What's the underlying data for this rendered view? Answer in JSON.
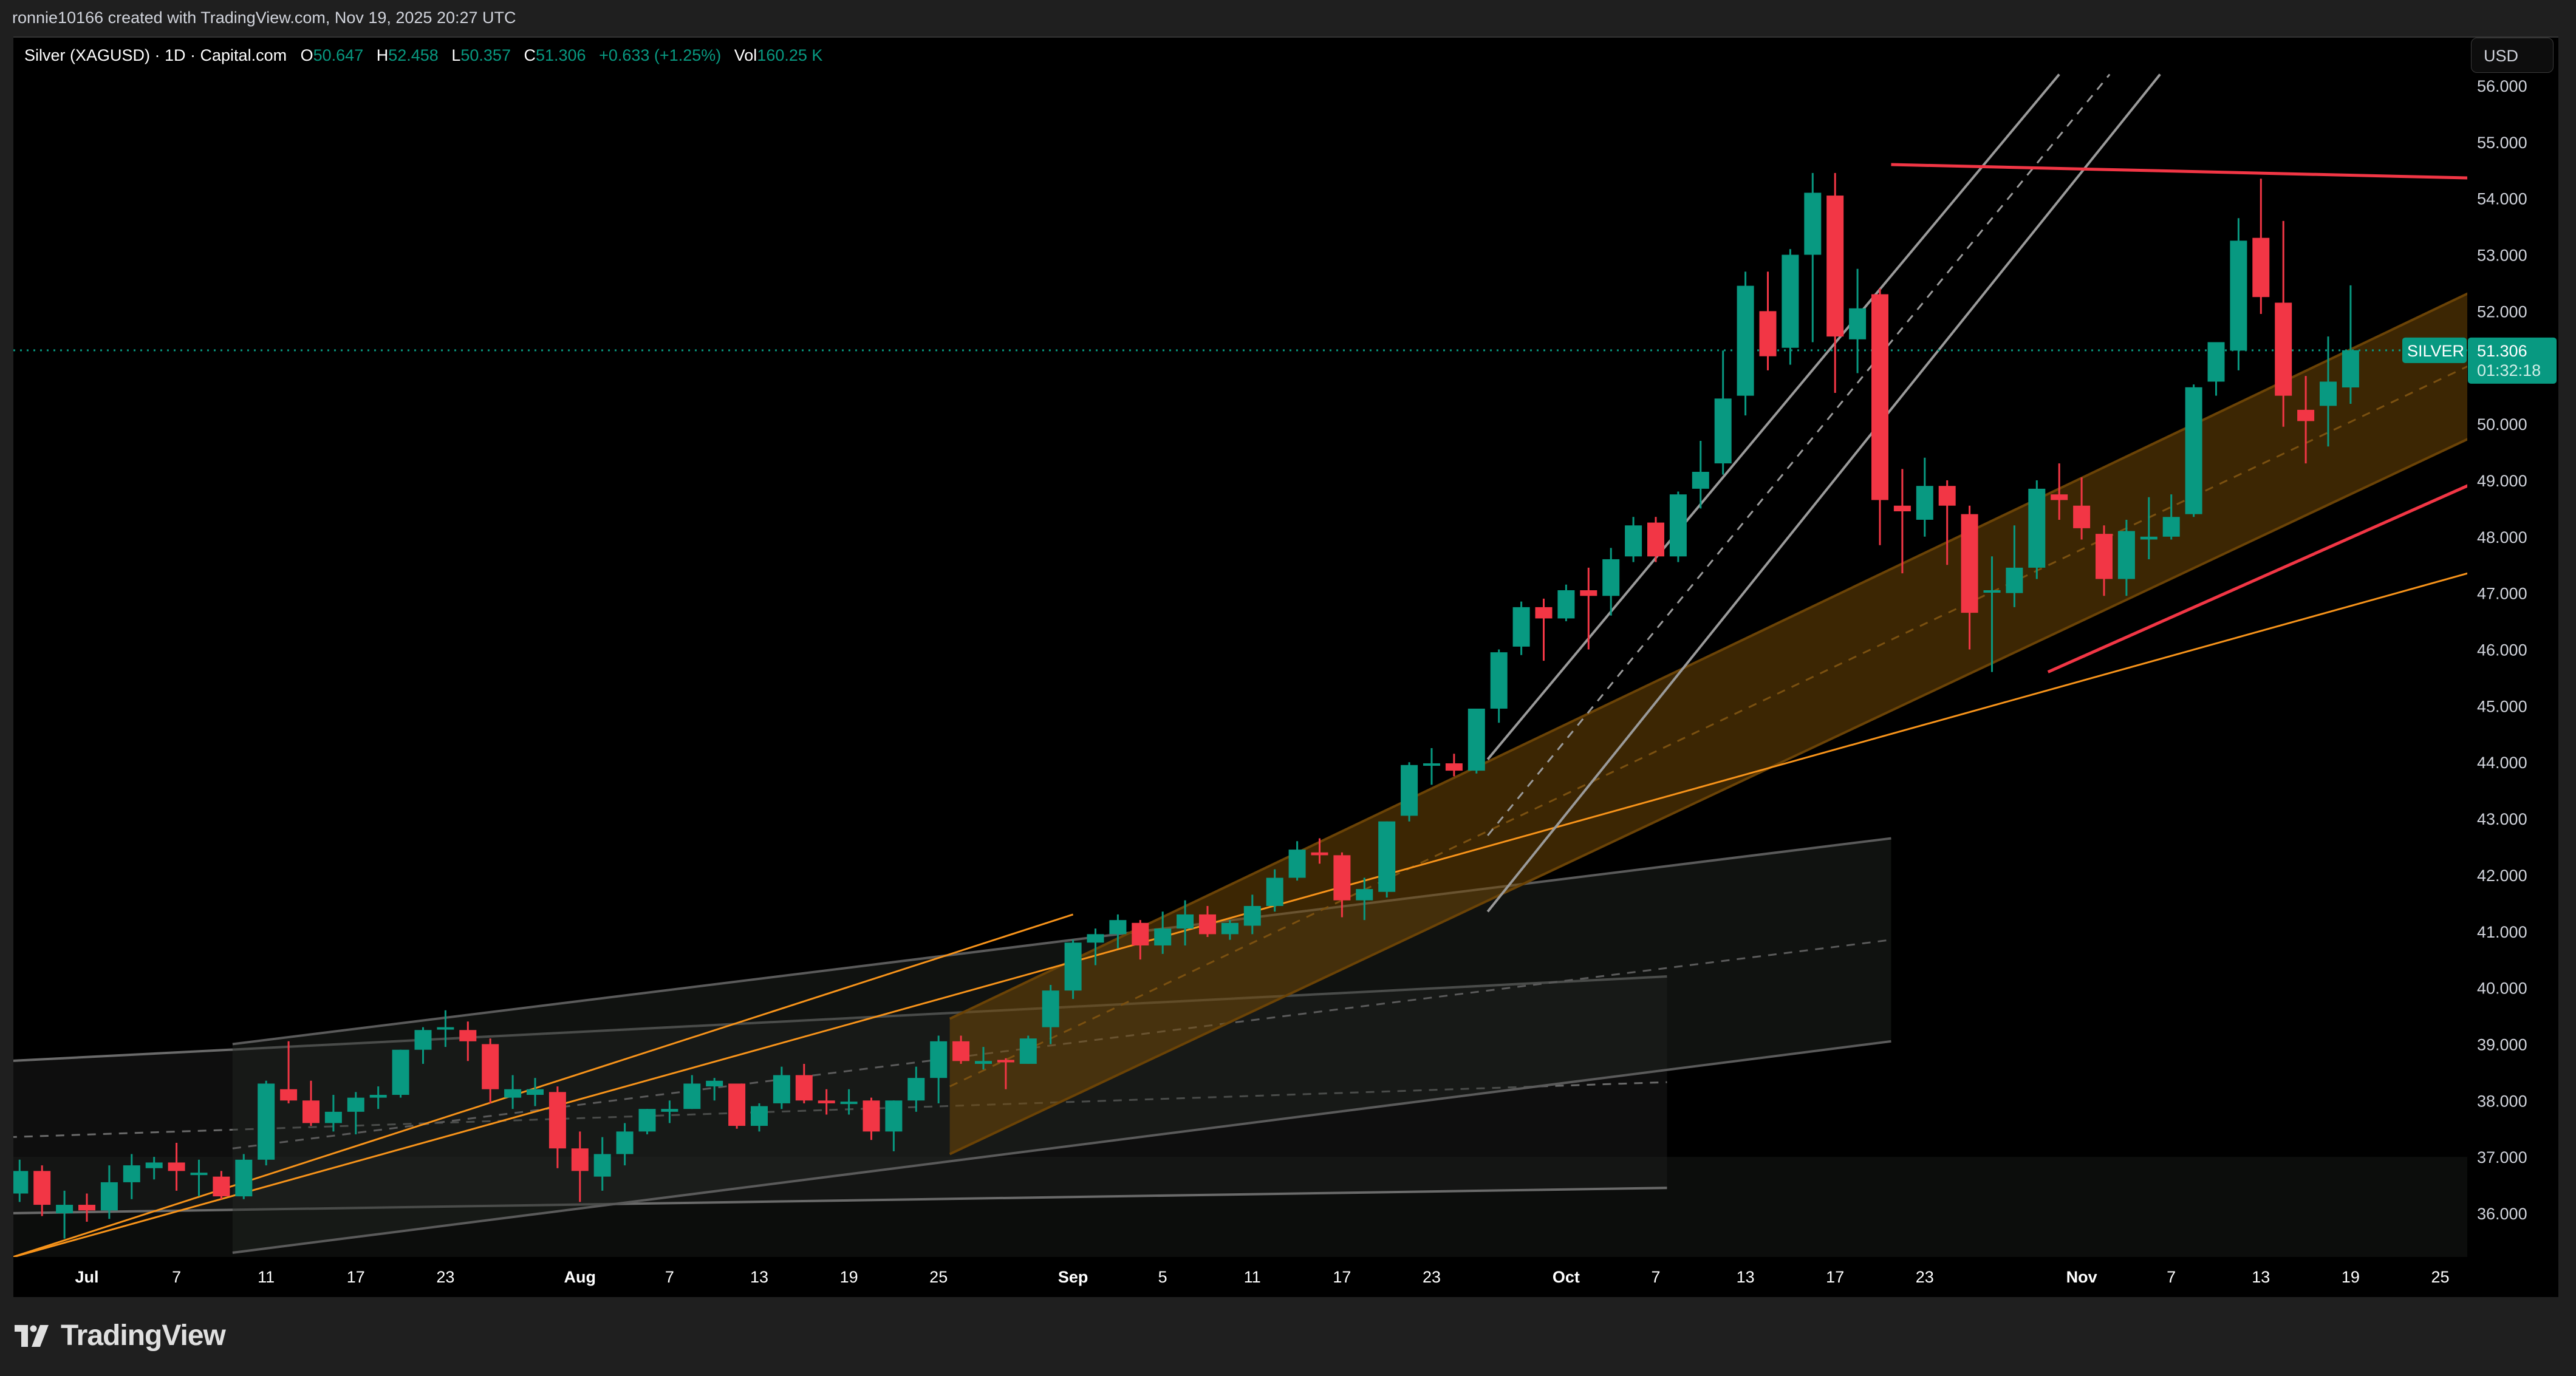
{
  "caption": "ronnie10166 created with TradingView.com, Nov 19, 2025 20:27 UTC",
  "legend": {
    "symbol": "Silver (XAGUSD) · 1D · Capital.com",
    "open_label": "O",
    "open": "50.647",
    "high_label": "H",
    "high": "52.458",
    "low_label": "L",
    "low": "50.357",
    "close_label": "C",
    "close": "51.306",
    "change": "+0.633 (+1.25%)",
    "vol_label": "Vol",
    "vol": "160.25 K"
  },
  "currency_button": "USD",
  "price_tag": {
    "symbol_label": "SILVER",
    "price": "51.306",
    "countdown": "01:32:18"
  },
  "footer": {
    "brand": "TradingView"
  },
  "colors": {
    "up": "#089981",
    "down": "#F23645",
    "channel_fill": "#3d2600",
    "channel_line": "#6b4306",
    "trend_orange": "#f7931a",
    "trend_red": "#F23645",
    "gray_line": "#8a8a8a",
    "axis_text": "#d1d4dc"
  },
  "chart_data": {
    "type": "candlestick",
    "title": "Silver (XAGUSD) · 1D · Capital.com",
    "xlabel": "",
    "ylabel": "USD",
    "ylim": [
      35.2,
      56.2
    ],
    "y_ticks": [
      "56.000",
      "55.000",
      "54.000",
      "53.000",
      "52.000",
      "51.000",
      "50.000",
      "49.000",
      "48.000",
      "47.000",
      "46.000",
      "45.000",
      "44.000",
      "43.000",
      "42.000",
      "41.000",
      "40.000",
      "39.000",
      "38.000",
      "37.000",
      "36.000"
    ],
    "y_tick_values": [
      56,
      55,
      54,
      53,
      52,
      51,
      50,
      49,
      48,
      47,
      46,
      45,
      44,
      43,
      42,
      41,
      40,
      39,
      38,
      37,
      36
    ],
    "x_ticks": [
      {
        "label": "Jul",
        "bar": 0,
        "bold": true
      },
      {
        "label": "7",
        "bar": 4
      },
      {
        "label": "11",
        "bar": 8
      },
      {
        "label": "17",
        "bar": 12
      },
      {
        "label": "23",
        "bar": 16
      },
      {
        "label": "Aug",
        "bar": 22,
        "bold": true
      },
      {
        "label": "7",
        "bar": 26
      },
      {
        "label": "13",
        "bar": 30
      },
      {
        "label": "19",
        "bar": 34
      },
      {
        "label": "25",
        "bar": 38
      },
      {
        "label": "Sep",
        "bar": 44,
        "bold": true
      },
      {
        "label": "5",
        "bar": 48
      },
      {
        "label": "11",
        "bar": 52
      },
      {
        "label": "17",
        "bar": 56
      },
      {
        "label": "23",
        "bar": 60
      },
      {
        "label": "Oct",
        "bar": 66,
        "bold": true
      },
      {
        "label": "7",
        "bar": 70
      },
      {
        "label": "13",
        "bar": 74
      },
      {
        "label": "17",
        "bar": 78
      },
      {
        "label": "23",
        "bar": 82
      },
      {
        "label": "Nov",
        "bar": 89,
        "bold": true
      },
      {
        "label": "7",
        "bar": 93
      },
      {
        "label": "13",
        "bar": 97
      },
      {
        "label": "19",
        "bar": 101
      },
      {
        "label": "25",
        "bar": 105
      }
    ],
    "last_price": 51.306,
    "candles": [
      {
        "d": "Jun 26",
        "o": 36.35,
        "h": 36.95,
        "l": 36.2,
        "c": 36.75
      },
      {
        "d": "Jun 27",
        "o": 36.75,
        "h": 36.85,
        "l": 35.95,
        "c": 36.15
      },
      {
        "d": "Jun 30",
        "o": 36.0,
        "h": 36.4,
        "l": 35.55,
        "c": 36.15
      },
      {
        "d": "Jul 1",
        "o": 36.15,
        "h": 36.35,
        "l": 35.85,
        "c": 36.05
      },
      {
        "d": "Jul 2",
        "o": 36.05,
        "h": 36.85,
        "l": 35.9,
        "c": 36.55
      },
      {
        "d": "Jul 3",
        "o": 36.55,
        "h": 37.05,
        "l": 36.25,
        "c": 36.85
      },
      {
        "d": "Jul 4",
        "o": 36.8,
        "h": 37.0,
        "l": 36.6,
        "c": 36.9
      },
      {
        "d": "Jul 7",
        "o": 36.9,
        "h": 37.25,
        "l": 36.4,
        "c": 36.75
      },
      {
        "d": "Jul 8",
        "o": 36.7,
        "h": 36.95,
        "l": 36.3,
        "c": 36.72
      },
      {
        "d": "Jul 9",
        "o": 36.65,
        "h": 36.75,
        "l": 36.25,
        "c": 36.3
      },
      {
        "d": "Jul 10",
        "o": 36.3,
        "h": 37.05,
        "l": 36.25,
        "c": 36.95
      },
      {
        "d": "Jul 11",
        "o": 36.95,
        "h": 38.35,
        "l": 36.85,
        "c": 38.3
      },
      {
        "d": "Jul 14",
        "o": 38.2,
        "h": 39.05,
        "l": 37.95,
        "c": 38.0
      },
      {
        "d": "Jul 15",
        "o": 38.0,
        "h": 38.35,
        "l": 37.55,
        "c": 37.6
      },
      {
        "d": "Jul 16",
        "o": 37.6,
        "h": 38.1,
        "l": 37.45,
        "c": 37.8
      },
      {
        "d": "Jul 17",
        "o": 37.8,
        "h": 38.15,
        "l": 37.4,
        "c": 38.05
      },
      {
        "d": "Jul 18",
        "o": 38.05,
        "h": 38.25,
        "l": 37.85,
        "c": 38.1
      },
      {
        "d": "Jul 21",
        "o": 38.1,
        "h": 38.9,
        "l": 38.05,
        "c": 38.9
      },
      {
        "d": "Jul 22",
        "o": 38.9,
        "h": 39.3,
        "l": 38.65,
        "c": 39.25
      },
      {
        "d": "Jul 23",
        "o": 39.3,
        "h": 39.6,
        "l": 38.95,
        "c": 39.3
      },
      {
        "d": "Jul 24",
        "o": 39.25,
        "h": 39.4,
        "l": 38.7,
        "c": 39.05
      },
      {
        "d": "Jul 25",
        "o": 39.0,
        "h": 39.1,
        "l": 37.95,
        "c": 38.2
      },
      {
        "d": "Jul 28",
        "o": 38.05,
        "h": 38.45,
        "l": 37.85,
        "c": 38.2
      },
      {
        "d": "Jul 29",
        "o": 38.1,
        "h": 38.4,
        "l": 37.9,
        "c": 38.2
      },
      {
        "d": "Jul 30",
        "o": 38.15,
        "h": 38.25,
        "l": 36.8,
        "c": 37.15
      },
      {
        "d": "Jul 31",
        "o": 37.15,
        "h": 37.45,
        "l": 36.2,
        "c": 36.75
      },
      {
        "d": "Aug 1",
        "o": 36.65,
        "h": 37.35,
        "l": 36.4,
        "c": 37.05
      },
      {
        "d": "Aug 4",
        "o": 37.05,
        "h": 37.6,
        "l": 36.85,
        "c": 37.45
      },
      {
        "d": "Aug 5",
        "o": 37.45,
        "h": 37.85,
        "l": 37.4,
        "c": 37.85
      },
      {
        "d": "Aug 6",
        "o": 37.8,
        "h": 38.0,
        "l": 37.6,
        "c": 37.85
      },
      {
        "d": "Aug 7",
        "o": 37.85,
        "h": 38.45,
        "l": 37.85,
        "c": 38.3
      },
      {
        "d": "Aug 8",
        "o": 38.25,
        "h": 38.4,
        "l": 38.0,
        "c": 38.35
      },
      {
        "d": "Aug 11",
        "o": 38.3,
        "h": 38.3,
        "l": 37.5,
        "c": 37.55
      },
      {
        "d": "Aug 12",
        "o": 37.55,
        "h": 37.95,
        "l": 37.45,
        "c": 37.9
      },
      {
        "d": "Aug 13",
        "o": 37.95,
        "h": 38.6,
        "l": 37.85,
        "c": 38.45
      },
      {
        "d": "Aug 14",
        "o": 38.45,
        "h": 38.65,
        "l": 37.95,
        "c": 38.0
      },
      {
        "d": "Aug 15",
        "o": 38.0,
        "h": 38.2,
        "l": 37.75,
        "c": 37.95
      },
      {
        "d": "Aug 18",
        "o": 37.95,
        "h": 38.2,
        "l": 37.75,
        "c": 37.98
      },
      {
        "d": "Aug 19",
        "o": 38.0,
        "h": 38.05,
        "l": 37.3,
        "c": 37.45
      },
      {
        "d": "Aug 20",
        "o": 37.45,
        "h": 38.0,
        "l": 37.1,
        "c": 38.0
      },
      {
        "d": "Aug 21",
        "o": 38.0,
        "h": 38.6,
        "l": 37.8,
        "c": 38.4
      },
      {
        "d": "Aug 22",
        "o": 38.4,
        "h": 39.15,
        "l": 37.95,
        "c": 39.05
      },
      {
        "d": "Aug 25",
        "o": 39.05,
        "h": 39.15,
        "l": 38.65,
        "c": 38.7
      },
      {
        "d": "Aug 26",
        "o": 38.65,
        "h": 38.95,
        "l": 38.55,
        "c": 38.7
      },
      {
        "d": "Aug 27",
        "o": 38.72,
        "h": 38.75,
        "l": 38.2,
        "c": 38.7
      },
      {
        "d": "Aug 28",
        "o": 38.65,
        "h": 39.15,
        "l": 38.65,
        "c": 39.1
      },
      {
        "d": "Aug 29",
        "o": 39.3,
        "h": 40.05,
        "l": 39.0,
        "c": 39.95
      },
      {
        "d": "Sep 1",
        "o": 39.95,
        "h": 40.85,
        "l": 39.8,
        "c": 40.8
      },
      {
        "d": "Sep 2",
        "o": 40.8,
        "h": 41.05,
        "l": 40.4,
        "c": 40.95
      },
      {
        "d": "Sep 3",
        "o": 40.95,
        "h": 41.3,
        "l": 40.7,
        "c": 41.2
      },
      {
        "d": "Sep 4",
        "o": 41.15,
        "h": 41.2,
        "l": 40.5,
        "c": 40.75
      },
      {
        "d": "Sep 5",
        "o": 40.75,
        "h": 41.35,
        "l": 40.6,
        "c": 41.05
      },
      {
        "d": "Sep 8",
        "o": 41.05,
        "h": 41.55,
        "l": 40.75,
        "c": 41.3
      },
      {
        "d": "Sep 9",
        "o": 41.3,
        "h": 41.45,
        "l": 40.9,
        "c": 40.95
      },
      {
        "d": "Sep 10",
        "o": 40.95,
        "h": 41.2,
        "l": 40.85,
        "c": 41.15
      },
      {
        "d": "Sep 11",
        "o": 41.1,
        "h": 41.65,
        "l": 40.95,
        "c": 41.45
      },
      {
        "d": "Sep 12",
        "o": 41.45,
        "h": 42.1,
        "l": 41.35,
        "c": 41.95
      },
      {
        "d": "Sep 15",
        "o": 41.95,
        "h": 42.6,
        "l": 41.9,
        "c": 42.45
      },
      {
        "d": "Sep 16",
        "o": 42.4,
        "h": 42.65,
        "l": 42.2,
        "c": 42.35
      },
      {
        "d": "Sep 17",
        "o": 42.35,
        "h": 42.4,
        "l": 41.25,
        "c": 41.55
      },
      {
        "d": "Sep 18",
        "o": 41.55,
        "h": 41.95,
        "l": 41.2,
        "c": 41.75
      },
      {
        "d": "Sep 19",
        "o": 41.7,
        "h": 42.95,
        "l": 41.6,
        "c": 42.95
      },
      {
        "d": "Sep 22",
        "o": 43.05,
        "h": 44.0,
        "l": 42.95,
        "c": 43.95
      },
      {
        "d": "Sep 23",
        "o": 43.95,
        "h": 44.25,
        "l": 43.6,
        "c": 43.98
      },
      {
        "d": "Sep 24",
        "o": 43.98,
        "h": 44.15,
        "l": 43.75,
        "c": 43.85
      },
      {
        "d": "Sep 25",
        "o": 43.85,
        "h": 44.95,
        "l": 43.8,
        "c": 44.95
      },
      {
        "d": "Sep 26",
        "o": 44.95,
        "h": 46.0,
        "l": 44.7,
        "c": 45.95
      },
      {
        "d": "Sep 29",
        "o": 46.05,
        "h": 46.85,
        "l": 45.9,
        "c": 46.75
      },
      {
        "d": "Sep 30",
        "o": 46.75,
        "h": 46.9,
        "l": 45.8,
        "c": 46.55
      },
      {
        "d": "Oct 1",
        "o": 46.55,
        "h": 47.15,
        "l": 46.5,
        "c": 47.05
      },
      {
        "d": "Oct 2",
        "o": 47.05,
        "h": 47.45,
        "l": 46.0,
        "c": 46.95
      },
      {
        "d": "Oct 3",
        "o": 46.95,
        "h": 47.8,
        "l": 46.6,
        "c": 47.6
      },
      {
        "d": "Oct 6",
        "o": 47.65,
        "h": 48.35,
        "l": 47.55,
        "c": 48.2
      },
      {
        "d": "Oct 7",
        "o": 48.25,
        "h": 48.35,
        "l": 47.55,
        "c": 47.65
      },
      {
        "d": "Oct 8",
        "o": 47.65,
        "h": 48.8,
        "l": 47.55,
        "c": 48.75
      },
      {
        "d": "Oct 9",
        "o": 48.85,
        "h": 49.7,
        "l": 48.5,
        "c": 49.15
      },
      {
        "d": "Oct 10",
        "o": 49.3,
        "h": 51.3,
        "l": 49.1,
        "c": 50.45
      },
      {
        "d": "Oct 13",
        "o": 50.5,
        "h": 52.7,
        "l": 50.15,
        "c": 52.45
      },
      {
        "d": "Oct 14",
        "o": 52.0,
        "h": 52.7,
        "l": 50.95,
        "c": 51.2
      },
      {
        "d": "Oct 15",
        "o": 51.35,
        "h": 53.1,
        "l": 51.05,
        "c": 53.0
      },
      {
        "d": "Oct 16",
        "o": 53.0,
        "h": 54.45,
        "l": 51.45,
        "c": 54.1
      },
      {
        "d": "Oct 17",
        "o": 54.05,
        "h": 54.45,
        "l": 50.55,
        "c": 51.55
      },
      {
        "d": "Oct 20",
        "o": 51.5,
        "h": 52.75,
        "l": 50.9,
        "c": 52.05
      },
      {
        "d": "Oct 21",
        "o": 52.3,
        "h": 52.4,
        "l": 47.85,
        "c": 48.65
      },
      {
        "d": "Oct 22",
        "o": 48.55,
        "h": 49.2,
        "l": 47.35,
        "c": 48.45
      },
      {
        "d": "Oct 23",
        "o": 48.3,
        "h": 49.4,
        "l": 48.0,
        "c": 48.9
      },
      {
        "d": "Oct 24",
        "o": 48.9,
        "h": 49.0,
        "l": 47.5,
        "c": 48.55
      },
      {
        "d": "Oct 27",
        "o": 48.4,
        "h": 48.55,
        "l": 46.0,
        "c": 46.65
      },
      {
        "d": "Oct 28",
        "o": 47.05,
        "h": 47.65,
        "l": 45.6,
        "c": 47.05
      },
      {
        "d": "Oct 29",
        "o": 47.0,
        "h": 48.2,
        "l": 46.75,
        "c": 47.45
      },
      {
        "d": "Oct 30",
        "o": 47.45,
        "h": 49.0,
        "l": 47.25,
        "c": 48.85
      },
      {
        "d": "Oct 31",
        "o": 48.75,
        "h": 49.3,
        "l": 48.3,
        "c": 48.65
      },
      {
        "d": "Nov 3",
        "o": 48.55,
        "h": 49.05,
        "l": 47.95,
        "c": 48.15
      },
      {
        "d": "Nov 4",
        "o": 48.05,
        "h": 48.2,
        "l": 46.95,
        "c": 47.25
      },
      {
        "d": "Nov 5",
        "o": 47.25,
        "h": 48.3,
        "l": 46.95,
        "c": 48.1
      },
      {
        "d": "Nov 6",
        "o": 47.95,
        "h": 48.7,
        "l": 47.6,
        "c": 48.0
      },
      {
        "d": "Nov 7",
        "o": 48.0,
        "h": 48.75,
        "l": 47.95,
        "c": 48.35
      },
      {
        "d": "Nov 10",
        "o": 48.4,
        "h": 50.7,
        "l": 48.35,
        "c": 50.65
      },
      {
        "d": "Nov 11",
        "o": 50.75,
        "h": 51.35,
        "l": 50.5,
        "c": 51.45
      },
      {
        "d": "Nov 12",
        "o": 51.3,
        "h": 53.65,
        "l": 50.95,
        "c": 53.25
      },
      {
        "d": "Nov 13",
        "o": 53.3,
        "h": 54.35,
        "l": 51.95,
        "c": 52.25
      },
      {
        "d": "Nov 14",
        "o": 52.15,
        "h": 53.6,
        "l": 49.95,
        "c": 50.5
      },
      {
        "d": "Nov 17",
        "o": 50.25,
        "h": 50.85,
        "l": 49.3,
        "c": 50.05
      },
      {
        "d": "Nov 18",
        "o": 50.32,
        "h": 51.55,
        "l": 49.6,
        "c": 50.75
      },
      {
        "d": "Nov 19",
        "o": 50.647,
        "h": 52.458,
        "l": 50.357,
        "c": 51.306
      }
    ],
    "annotations": [
      {
        "type": "trendline",
        "name": "resistance-line",
        "color": "#F23645",
        "from": {
          "bar": 80.5,
          "p": 54.6
        },
        "to": {
          "bar": 113,
          "p": 54.3
        }
      },
      {
        "type": "trendline",
        "name": "support-line-red",
        "color": "#F23645",
        "from": {
          "bar": 87.5,
          "p": 45.6
        },
        "to": {
          "bar": 113,
          "p": 50.1
        }
      },
      {
        "type": "trendline",
        "name": "orange-long-trendline",
        "color": "#f7931a",
        "from": {
          "bar": -3.5,
          "p": 35.2
        },
        "to": {
          "bar": 113,
          "p": 48.1
        }
      },
      {
        "type": "trendline",
        "name": "orange-mid-trendline",
        "color": "#f7931a",
        "from": {
          "bar": -3.5,
          "p": 35.2
        },
        "to": {
          "bar": 44,
          "p": 41.3
        }
      },
      {
        "type": "parallel_channel",
        "name": "orange-channel",
        "fill": "rgba(120,75,5,0.5)",
        "line": "#6b4306",
        "upper": {
          "from": {
            "bar": 38.5,
            "p": 39.45
          },
          "to": {
            "bar": 113,
            "p": 53.6
          }
        },
        "lower": {
          "from": {
            "bar": 38.5,
            "p": 37.05
          },
          "to": {
            "bar": 113,
            "p": 51.0
          }
        }
      },
      {
        "type": "parallel_channel",
        "name": "steep-gray-channel",
        "line": "#9a9a9a",
        "upper": {
          "from": {
            "bar": 62.5,
            "p": 44.05
          },
          "to": {
            "bar": 88,
            "p": 56.2
          }
        },
        "lower": {
          "from": {
            "bar": 62.5,
            "p": 41.35
          },
          "to": {
            "bar": 92.5,
            "p": 56.2
          }
        }
      },
      {
        "type": "parallel_channel",
        "name": "gray-channel-1",
        "fill": "rgba(35,40,35,0.45)",
        "line": "#5a5a5a",
        "upper": {
          "from": {
            "bar": 6.5,
            "p": 39.0
          },
          "to": {
            "bar": 80.5,
            "p": 42.65
          }
        },
        "lower": {
          "from": {
            "bar": 6.5,
            "p": 35.3
          },
          "to": {
            "bar": 80.5,
            "p": 39.05
          }
        }
      },
      {
        "type": "parallel_channel",
        "name": "gray-channel-2",
        "fill": "rgba(30,32,30,0.45)",
        "line": "#6a6a6a",
        "upper": {
          "from": {
            "bar": -3.5,
            "p": 38.7
          },
          "to": {
            "bar": 70.5,
            "p": 40.2
          }
        },
        "lower": {
          "from": {
            "bar": -3.5,
            "p": 36.0
          },
          "to": {
            "bar": 70.5,
            "p": 36.45
          }
        }
      },
      {
        "type": "rectangle",
        "name": "dark-zone",
        "fill": "rgba(20,22,20,0.6)",
        "from": {
          "bar": -3.5,
          "p": 35.2
        },
        "to": {
          "bar": 113,
          "p": 37.0
        }
      }
    ]
  }
}
